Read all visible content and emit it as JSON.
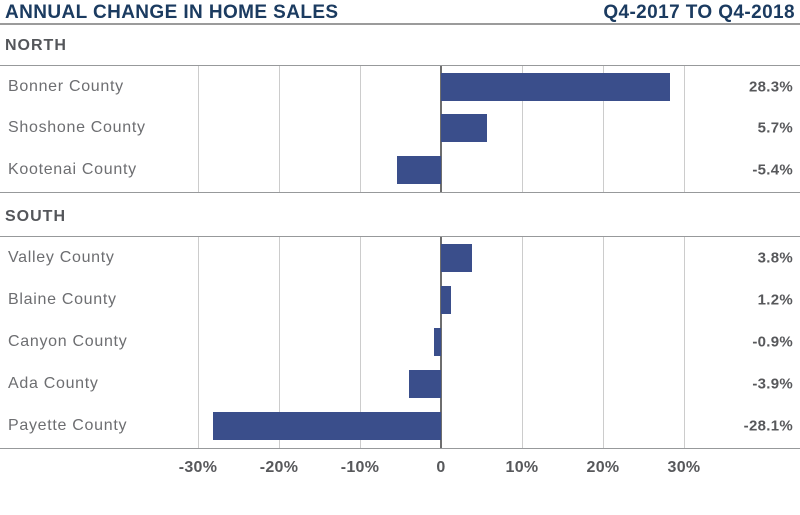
{
  "header": {
    "title": "ANNUAL CHANGE IN HOME SALES",
    "period": "Q4-2017 TO Q4-2018"
  },
  "chart_data": {
    "type": "bar",
    "orientation": "horizontal",
    "title": "ANNUAL CHANGE IN HOME SALES",
    "subtitle": "Q4-2017 TO Q4-2018",
    "xlabel": "",
    "ylabel": "",
    "value_unit": "percent",
    "grid": true,
    "axis_range": [
      -30,
      30
    ],
    "axis_ticks": [
      {
        "value": -30,
        "label": "-30%"
      },
      {
        "value": -20,
        "label": "-20%"
      },
      {
        "value": -10,
        "label": "-10%"
      },
      {
        "value": 0,
        "label": "0"
      },
      {
        "value": 10,
        "label": "10%"
      },
      {
        "value": 20,
        "label": "20%"
      },
      {
        "value": 30,
        "label": "30%"
      }
    ],
    "sections": [
      {
        "name": "NORTH",
        "rows": [
          {
            "label": "Bonner County",
            "value": 28.3,
            "value_label": "28.3%"
          },
          {
            "label": "Shoshone County",
            "value": 5.7,
            "value_label": "5.7%"
          },
          {
            "label": "Kootenai County",
            "value": -5.4,
            "value_label": "-5.4%"
          }
        ]
      },
      {
        "name": "SOUTH",
        "rows": [
          {
            "label": "Valley County",
            "value": 3.8,
            "value_label": "3.8%"
          },
          {
            "label": "Blaine County",
            "value": 1.2,
            "value_label": "1.2%"
          },
          {
            "label": "Canyon County",
            "value": -0.9,
            "value_label": "-0.9%"
          },
          {
            "label": "Ada County",
            "value": -3.9,
            "value_label": "-3.9%"
          },
          {
            "label": "Payette County",
            "value": -28.1,
            "value_label": "-28.1%"
          }
        ]
      }
    ],
    "colors": {
      "bar": "#3a4e8b",
      "title": "#1b3b60",
      "section_label": "#54565a",
      "row_label": "#6d6e71",
      "value_label": "#57585b",
      "tick_label": "#57585b",
      "gridline": "#cccccc",
      "zero_line": "#6e6e6e",
      "chart_border": "#97999b",
      "header_rule": "#9b9b9b"
    }
  }
}
